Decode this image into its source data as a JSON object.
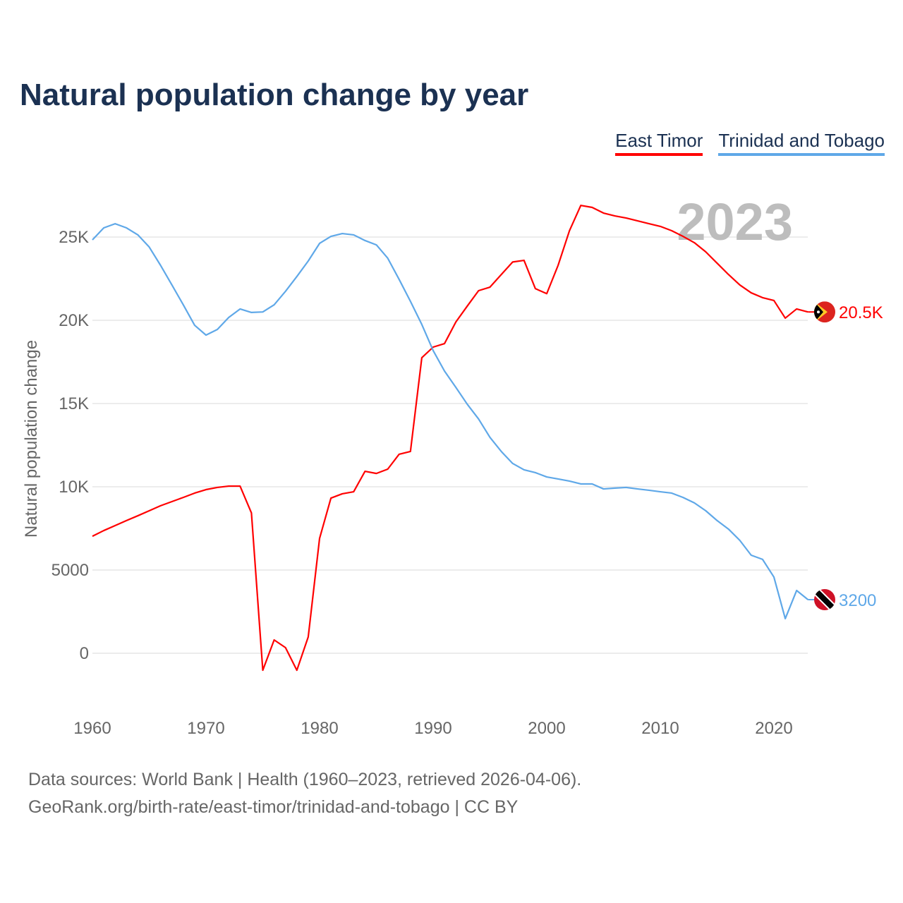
{
  "title": "Natural population change by year",
  "footer": {
    "line1": "Data sources: World Bank | Health (1960–2023, retrieved 2026-04-06).",
    "line2": "GeoRank.org/birth-rate/east-timor/trinidad-and-tobago | CC BY"
  },
  "chart_data": {
    "type": "line",
    "title": "Natural population change by year",
    "xlabel": "",
    "ylabel": "Natural population change",
    "year_label": "2023",
    "xlim": [
      1960,
      2023
    ],
    "ylim": [
      -3000,
      28000
    ],
    "x_ticks": [
      1960,
      1970,
      1980,
      1990,
      2000,
      2010,
      2020
    ],
    "y_ticks": [
      0,
      5000,
      10000,
      15000,
      20000,
      25000
    ],
    "y_tick_labels": [
      "0",
      "5000",
      "10K",
      "15K",
      "20K",
      "25K"
    ],
    "legend_position": "top-right",
    "grid": true,
    "x": [
      1960,
      1961,
      1962,
      1963,
      1964,
      1965,
      1966,
      1967,
      1968,
      1969,
      1970,
      1971,
      1972,
      1973,
      1974,
      1975,
      1976,
      1977,
      1978,
      1979,
      1980,
      1981,
      1982,
      1983,
      1984,
      1985,
      1986,
      1987,
      1988,
      1989,
      1990,
      1991,
      1992,
      1993,
      1994,
      1995,
      1996,
      1997,
      1998,
      1999,
      2000,
      2001,
      2002,
      2003,
      2004,
      2005,
      2006,
      2007,
      2008,
      2009,
      2010,
      2011,
      2012,
      2013,
      2014,
      2015,
      2016,
      2017,
      2018,
      2019,
      2020,
      2021,
      2022,
      2023
    ],
    "series": [
      {
        "name": "East Timor",
        "color": "#ff0000",
        "end_label": "20.5K",
        "flag": "east-timor-flag",
        "values": [
          7030,
          7370,
          7670,
          7970,
          8260,
          8560,
          8860,
          9110,
          9360,
          9620,
          9830,
          9960,
          10040,
          10040,
          8430,
          -1020,
          800,
          340,
          -1020,
          980,
          6900,
          9320,
          9580,
          9700,
          10930,
          10800,
          11060,
          11950,
          12120,
          17750,
          18390,
          18600,
          19900,
          20850,
          21780,
          21990,
          22750,
          23500,
          23600,
          21900,
          21600,
          23300,
          25380,
          26900,
          26780,
          26440,
          26270,
          26140,
          25970,
          25800,
          25640,
          25380,
          25040,
          24660,
          24110,
          23430,
          22750,
          22120,
          21650,
          21360,
          21190,
          20130,
          20680,
          20500
        ]
      },
      {
        "name": "Trinidad and Tobago",
        "color": "#5fa8e8",
        "end_label": "3200",
        "flag": "trinidad-flag",
        "values": [
          24830,
          25550,
          25800,
          25550,
          25130,
          24400,
          23300,
          22120,
          20930,
          19700,
          19110,
          19450,
          20170,
          20680,
          20470,
          20500,
          20930,
          21740,
          22630,
          23560,
          24620,
          25040,
          25210,
          25130,
          24790,
          24530,
          23730,
          22460,
          21140,
          19750,
          18180,
          16950,
          15970,
          14960,
          14070,
          12970,
          12120,
          11400,
          11020,
          10850,
          10590,
          10470,
          10340,
          10170,
          10170,
          9870,
          9920,
          9960,
          9870,
          9790,
          9700,
          9620,
          9360,
          9030,
          8560,
          7970,
          7460,
          6780,
          5890,
          5640,
          4580,
          2080,
          3770,
          3220
        ]
      }
    ]
  }
}
